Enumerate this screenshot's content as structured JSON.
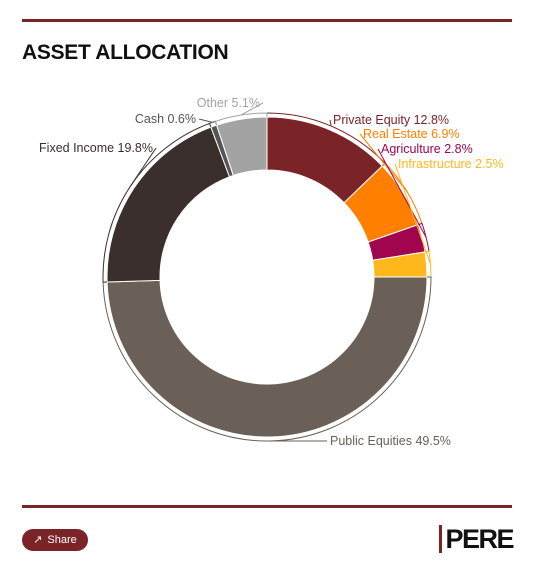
{
  "title": "ASSET ALLOCATION",
  "share_label": "Share",
  "logo_text": "PERE",
  "colors": {
    "accent": "#7a2428",
    "private_equity": "#7b2428",
    "real_estate": "#ff8000",
    "agriculture": "#a0054e",
    "infrastructure": "#ffb81c",
    "public_equities": "#6b6057",
    "fixed_income": "#3a2f2d",
    "cash": "#555555",
    "other": "#a3a3a3"
  },
  "chart_data": {
    "type": "pie",
    "variant": "donut",
    "title": "ASSET ALLOCATION",
    "categories": [
      "Private Equity",
      "Real Estate",
      "Agriculture",
      "Infrastructure",
      "Public Equities",
      "Fixed Income",
      "Cash",
      "Other"
    ],
    "values": [
      12.8,
      6.9,
      2.8,
      2.5,
      49.5,
      19.8,
      0.6,
      5.1
    ],
    "unit": "%",
    "labels": [
      "Private Equity 12.8%",
      "Real Estate 6.9%",
      "Agriculture 2.8%",
      "Infrastructure 2.5%",
      "Public Equities 49.5%",
      "Fixed Income 19.8%",
      "Cash 0.6%",
      "Other 5.1%"
    ],
    "colors": [
      "#7b2428",
      "#ff8000",
      "#a0054e",
      "#ffb81c",
      "#6b6057",
      "#3a2f2d",
      "#555555",
      "#a3a3a3"
    ],
    "label_colors": [
      "#7b2428",
      "#ff8000",
      "#a0054e",
      "#ffb81c",
      "#6b6057",
      "#3a2f2d",
      "#555555",
      "#a3a3a3"
    ]
  }
}
